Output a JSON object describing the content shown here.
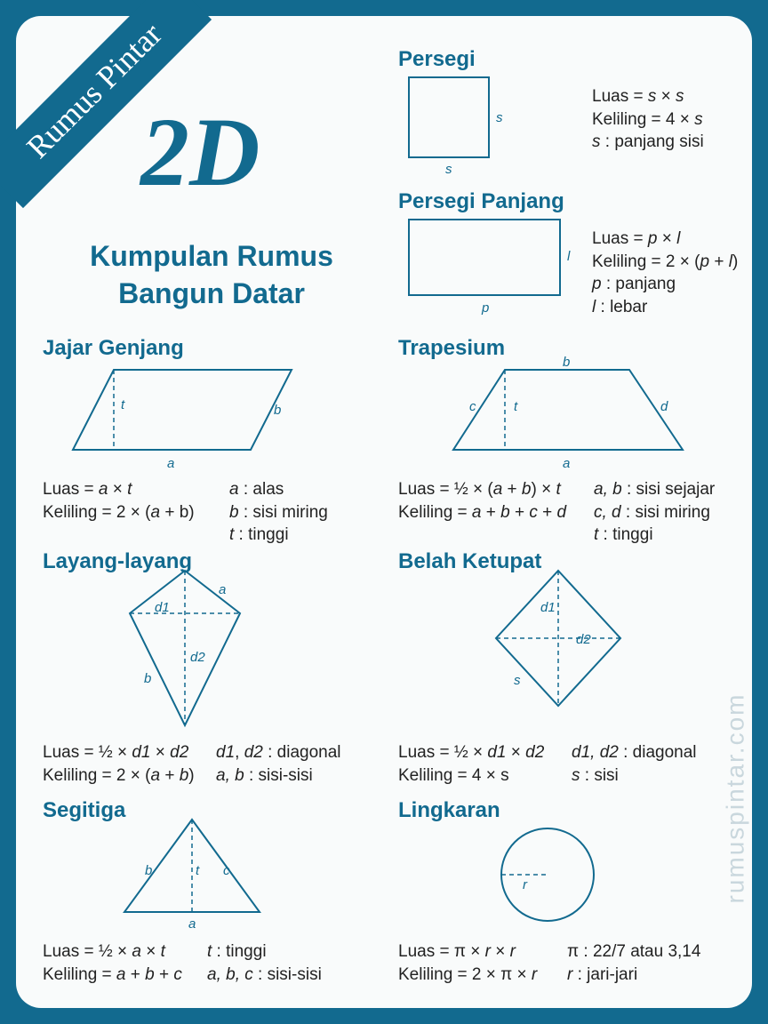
{
  "colors": {
    "accent": "#126a8f",
    "bg_outer": "#126a8f",
    "bg_card": "#f9fbfb",
    "stroke": "#126a8f",
    "text": "#222222",
    "watermark": "#c9d7dd"
  },
  "ribbon": "Rumus Pintar",
  "big_title": "2D",
  "subtitle_line1": "Kumpulan Rumus",
  "subtitle_line2": "Bangun Datar",
  "watermark": "rumuspintar.com",
  "persegi": {
    "title": "Persegi",
    "shape": {
      "type": "square",
      "side": 90,
      "stroke_width": 2,
      "stroke": "#126a8f",
      "fill": "none",
      "labels": {
        "right": "s",
        "bottom": "s"
      }
    },
    "line1": "Luas = <i>s</i> × <i>s</i>",
    "line2": "Keliling = 4 × <i>s</i>",
    "line3": "<i>s</i> : panjang sisi"
  },
  "persegi_panjang": {
    "title": "Persegi Panjang",
    "shape": {
      "type": "rect",
      "w": 170,
      "h": 85,
      "stroke_width": 2,
      "stroke": "#126a8f",
      "fill": "none",
      "labels": {
        "right": "l",
        "bottom": "p"
      }
    },
    "line1": "Luas = <i>p</i> × <i>l</i>",
    "line2": "Keliling = 2 × (<i>p</i> + <i>l</i>)",
    "line3": "<i>p</i> : panjang",
    "line4": "<i>l</i> : lebar"
  },
  "jajar_genjang": {
    "title": "Jajar Genjang",
    "shape": {
      "type": "parallelogram",
      "stroke": "#126a8f",
      "stroke_width": 2,
      "labels": {
        "t": "t",
        "b": "b",
        "a": "a"
      }
    },
    "left_col": "Luas = <i>a</i> × <i>t</i><br>Keliling = 2 × (<i>a</i> + b)",
    "right_col": "<i>a</i> : alas<br><i>b</i> : sisi miring<br><i>t</i> : tinggi"
  },
  "trapesium": {
    "title": "Trapesium",
    "shape": {
      "type": "trapezoid",
      "stroke": "#126a8f",
      "stroke_width": 2,
      "labels": {
        "a": "a",
        "b": "b",
        "c": "c",
        "d": "d",
        "t": "t"
      }
    },
    "left_col": "Luas = ½ × (<i>a</i> + <i>b</i>) × <i>t</i><br>Keliling = <i>a</i> + <i>b</i> + <i>c</i> + <i>d</i>",
    "right_col": "<i>a, b</i> : sisi sejajar<br><i>c, d</i> : sisi miring<br><i>t</i> : tinggi"
  },
  "layang": {
    "title": "Layang-layang",
    "shape": {
      "type": "kite",
      "stroke": "#126a8f",
      "stroke_width": 2,
      "labels": {
        "d1": "d1",
        "d2": "d2",
        "a": "a",
        "b": "b"
      }
    },
    "left_col": "Luas = ½ × <i>d1</i> × <i>d2</i><br>Keliling = 2 × (<i>a</i> + <i>b</i>)",
    "right_col": "<i>d1</i>, <i>d2</i> : diagonal<br><i>a, b</i> : sisi-sisi"
  },
  "belah_ketupat": {
    "title": "Belah Ketupat",
    "shape": {
      "type": "rhombus",
      "stroke": "#126a8f",
      "stroke_width": 2,
      "labels": {
        "d1": "d1",
        "d2": "d2",
        "s": "s"
      }
    },
    "left_col": "Luas = ½ × <i>d1</i> × <i>d2</i><br>Keliling = 4 × s",
    "right_col": "<i>d1, d2</i> : diagonal<br><i>s</i> : sisi"
  },
  "segitiga": {
    "title": "Segitiga",
    "shape": {
      "type": "triangle",
      "stroke": "#126a8f",
      "stroke_width": 2,
      "labels": {
        "a": "a",
        "b": "b",
        "c": "c",
        "t": "t"
      }
    },
    "left_col": "Luas = ½ × <i>a</i> × <i>t</i><br>Keliling = <i>a</i> + <i>b</i> + <i>c</i>",
    "right_col": "<i>t</i> : tinggi<br><i>a, b, c</i> : sisi-sisi"
  },
  "lingkaran": {
    "title": "Lingkaran",
    "shape": {
      "type": "circle",
      "r": 50,
      "stroke": "#126a8f",
      "stroke_width": 2,
      "labels": {
        "r": "r"
      }
    },
    "left_col": "Luas = π × <i>r</i> × <i>r</i><br>Keliling = 2 × π × <i>r</i>",
    "right_col": "π : 22/7 atau 3,14<br><i>r</i> : jari-jari"
  }
}
